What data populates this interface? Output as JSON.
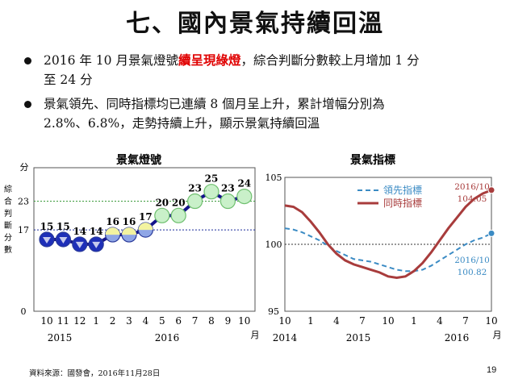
{
  "title": "七、國內景氣持續回溫",
  "bullets": [
    {
      "line1_pre": "2016 年 10 月景氣燈號",
      "line1_highlight": "續呈現綠燈",
      "line1_post": "，綜合判斷分數較上月增加 1 分",
      "line2": "至 24 分"
    },
    {
      "line1": "景氣領先、同時指標均已連續  8  個月呈上升，累計增幅分別為",
      "line2": "2.8%、6.8%，走勢持續上升，顯示景氣持續回溫"
    }
  ],
  "source": "資料來源：國發會，2016年11月28日",
  "page_number": "19",
  "chart_data": [
    {
      "type": "line",
      "title": "景氣燈號",
      "ylabel_unit": "分",
      "ylabel": "綜合判斷分數",
      "ylim": [
        0,
        30
      ],
      "yticks": [
        0,
        17,
        23
      ],
      "reference_lines": [
        {
          "value": 23,
          "color": "#3a9a3a"
        },
        {
          "value": 17,
          "color": "#1a2a9a"
        }
      ],
      "x_ticks": [
        "10",
        "11",
        "12",
        "1",
        "2",
        "3",
        "4",
        "5",
        "6",
        "7",
        "8",
        "9",
        "10"
      ],
      "x_unit": "月",
      "x_year_labels": [
        "2015",
        "2016"
      ],
      "values": [
        15,
        15,
        14,
        14,
        16,
        16,
        17,
        20,
        20,
        23,
        25,
        23,
        24
      ],
      "signals": [
        "blue",
        "blue",
        "blue",
        "blue",
        "yellow-blue",
        "yellow-blue",
        "yellow-blue",
        "green",
        "green",
        "green",
        "green",
        "green",
        "green"
      ],
      "signal_colors": {
        "blue": "#1e2fb8",
        "yellow-blue": "#8fa6e6",
        "green": "#c9f0c9",
        "line": "#14148a"
      }
    },
    {
      "type": "line",
      "title": "景氣指標",
      "ylim": [
        95,
        105
      ],
      "yticks": [
        95,
        100,
        105
      ],
      "reference_line": 100,
      "x_ticks": [
        "10",
        "1",
        "4",
        "7",
        "10",
        "1",
        "4",
        "7",
        "10"
      ],
      "x_unit": "月",
      "x_year_labels": [
        "2014",
        "2015",
        "2016"
      ],
      "series": [
        {
          "name": "領先指標",
          "style": "dashed",
          "color": "#3b8bc4",
          "values": [
            101.2,
            101.1,
            100.9,
            100.6,
            100.3,
            99.9,
            99.5,
            99.2,
            98.9,
            98.8,
            98.7,
            98.5,
            98.3,
            98.1,
            98.0,
            98.0,
            98.1,
            98.4,
            98.8,
            99.2,
            99.6,
            100.0,
            100.3,
            100.5,
            100.82
          ]
        },
        {
          "name": "同時指標",
          "style": "solid",
          "color": "#a83c3c",
          "values": [
            102.9,
            102.8,
            102.4,
            101.7,
            100.9,
            100.0,
            99.3,
            98.8,
            98.5,
            98.3,
            98.1,
            97.9,
            97.6,
            97.5,
            97.6,
            98.0,
            98.6,
            99.4,
            100.3,
            101.2,
            102.0,
            102.8,
            103.4,
            103.8,
            104.05
          ]
        }
      ],
      "annotations": [
        {
          "date": "2016/10",
          "value": "104.05",
          "color": "#a83c3c"
        },
        {
          "date": "2016/10",
          "value": "100.82",
          "color": "#3b8bc4"
        }
      ]
    }
  ]
}
